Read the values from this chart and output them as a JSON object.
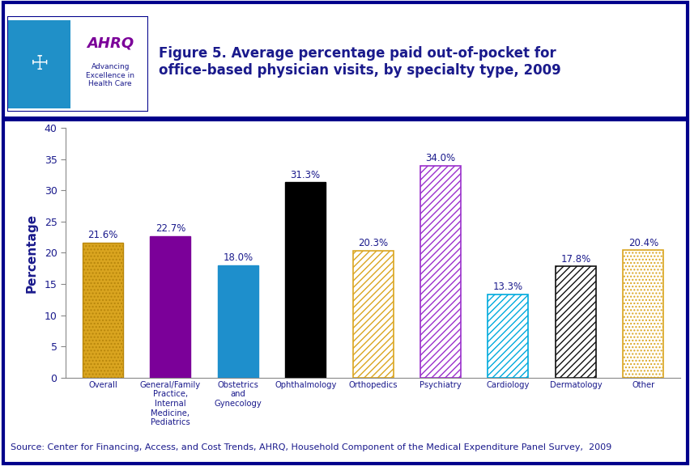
{
  "categories": [
    "Overall",
    "General/Family\nPractice,\nInternal\nMedicine,\nPediatrics",
    "Obstetrics\nand\nGynecology",
    "Ophthalmology",
    "Orthopedics",
    "Psychiatry",
    "Cardiology",
    "Dermatology",
    "Other"
  ],
  "values": [
    21.6,
    22.7,
    18.0,
    31.3,
    20.3,
    34.0,
    13.3,
    17.8,
    20.4
  ],
  "labels": [
    "21.6%",
    "22.7%",
    "18.0%",
    "31.3%",
    "20.3%",
    "34.0%",
    "13.3%",
    "17.8%",
    "20.4%"
  ],
  "title": "Figure 5. Average percentage paid out-of-pocket for\noffice-based physician visits, by specialty type, 2009",
  "ylabel": "Percentage",
  "ylim": [
    0,
    40
  ],
  "yticks": [
    0,
    5,
    10,
    15,
    20,
    25,
    30,
    35,
    40
  ],
  "source_text": "Source: Center for Financing, Access, and Cost Trends, AHRQ, Household Component of the Medical Expenditure Panel Survey,  2009",
  "title_color": "#1a1a8c",
  "ylabel_color": "#1a1a8c",
  "tick_label_color": "#1a1a8c",
  "source_color": "#1a1a8c",
  "value_label_color": "#1a1a8c",
  "border_color": "#00008B",
  "header_line_color": "#00008B"
}
